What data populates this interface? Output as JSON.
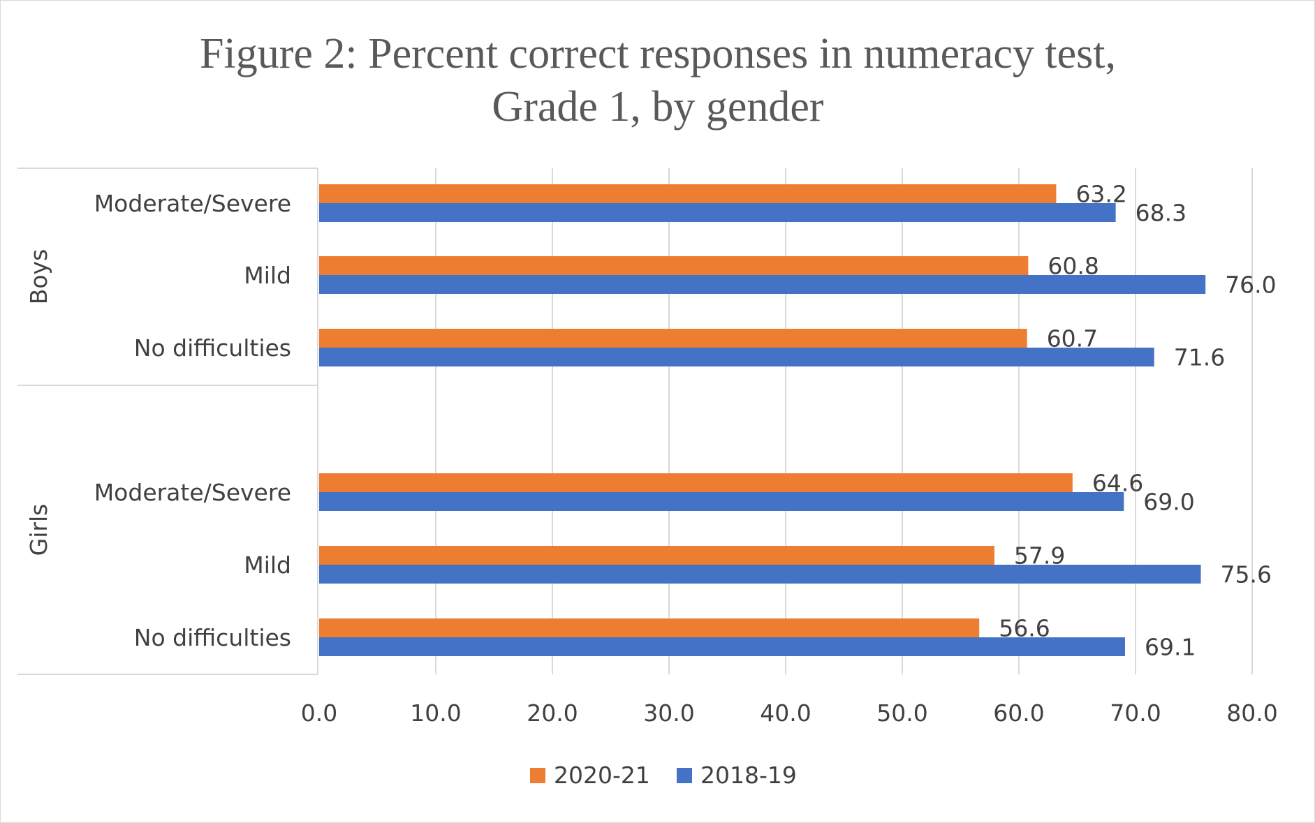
{
  "chart_data": {
    "type": "bar",
    "orientation": "horizontal",
    "title": "Figure 2: Percent correct responses in numeracy test, Grade 1, by gender",
    "title_lines": [
      "Figure 2: Percent correct responses in numeracy test,",
      "Grade 1, by gender"
    ],
    "xlim": [
      0,
      80
    ],
    "x_ticks": [
      "0.0",
      "10.0",
      "20.0",
      "30.0",
      "40.0",
      "50.0",
      "60.0",
      "70.0",
      "80.0"
    ],
    "grid": true,
    "legend_position": "bottom",
    "groups": [
      {
        "name": "Boys",
        "categories": [
          "Moderate/Severe",
          "Mild",
          "No difficulties"
        ]
      },
      {
        "name": "Girls",
        "categories": [
          "Moderate/Severe",
          "Mild",
          "No difficulties"
        ]
      }
    ],
    "series": [
      {
        "name": "2020-21",
        "color": "#ED7D31",
        "values": [
          63.2,
          60.8,
          60.7,
          64.6,
          57.9,
          56.6
        ]
      },
      {
        "name": "2018-19",
        "color": "#4472C4",
        "values": [
          68.3,
          76.0,
          71.6,
          69.0,
          75.6,
          69.1
        ]
      }
    ]
  }
}
